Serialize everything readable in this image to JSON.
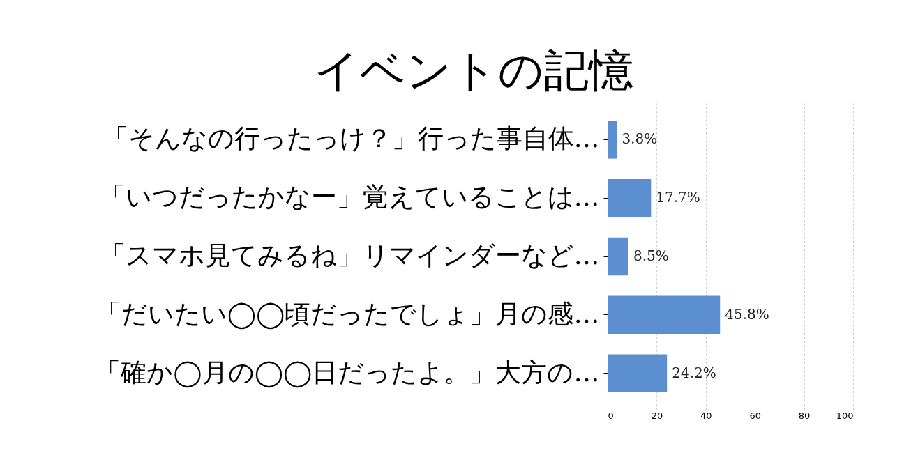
{
  "chart_data": {
    "type": "bar",
    "orientation": "horizontal",
    "title": "イベントの記憶",
    "categories": [
      "「そんなの行ったっけ？」行った事自体…",
      "「いつだったかなー」覚えていることは…",
      "「スマホ見てみるね」リマインダーなど…",
      "「だいたい◯◯頃だったでしょ」月の感…",
      "「確か◯月の◯◯日だったよ。」大方の…"
    ],
    "values": [
      3.8,
      17.7,
      8.5,
      45.8,
      24.2
    ],
    "value_labels": [
      "3.8%",
      "17.7%",
      "8.5%",
      "45.8%",
      "24.2%"
    ],
    "color": "#5b8fd0",
    "xlim": [
      0,
      100
    ],
    "xticks": [
      0,
      20,
      40,
      60,
      80,
      100
    ],
    "grid": "x"
  }
}
